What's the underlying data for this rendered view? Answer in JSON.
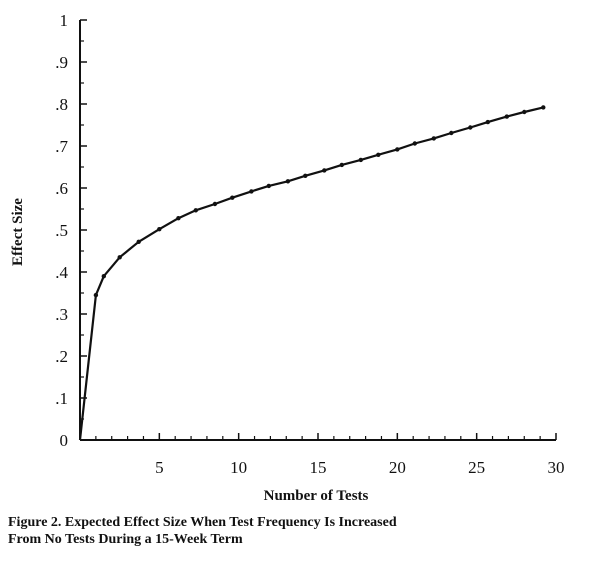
{
  "caption": {
    "line1": "Figure 2. Expected Effect Size When Test Frequency Is Increased",
    "line2": "From No Tests During a 15-Week Term"
  },
  "chart_data": {
    "type": "line",
    "xlabel": "Number of Tests",
    "ylabel": "Effect Size",
    "xlim": [
      0,
      30
    ],
    "ylim": [
      0,
      1
    ],
    "xticks": [
      5,
      10,
      15,
      20,
      25,
      30
    ],
    "xtick_labels": [
      "5",
      "10",
      "15",
      "20",
      "25",
      "30"
    ],
    "yticks": [
      0,
      0.1,
      0.2,
      0.3,
      0.4,
      0.5,
      0.6,
      0.7,
      0.8,
      0.9,
      1
    ],
    "ytick_labels": [
      "0",
      ".1",
      ".2",
      ".3",
      ".4",
      ".5",
      ".6",
      ".7",
      ".8",
      ".9",
      "1"
    ],
    "grid": false,
    "legend": "none",
    "series": [
      {
        "color": "#111111",
        "markers": true,
        "x": [
          0,
          1,
          1.5,
          2.5,
          3.7,
          5,
          6.2,
          7.3,
          8.5,
          9.6,
          10.8,
          11.9,
          13.1,
          14.2,
          15.4,
          16.5,
          17.7,
          18.8,
          20,
          21.1,
          22.3,
          23.4,
          24.6,
          25.7,
          26.9,
          28,
          29.2
        ],
        "y": [
          0,
          0.345,
          0.39,
          0.435,
          0.472,
          0.502,
          0.528,
          0.547,
          0.562,
          0.577,
          0.592,
          0.605,
          0.616,
          0.629,
          0.642,
          0.655,
          0.667,
          0.679,
          0.692,
          0.706,
          0.718,
          0.731,
          0.744,
          0.757,
          0.77,
          0.781,
          0.792
        ]
      }
    ]
  }
}
